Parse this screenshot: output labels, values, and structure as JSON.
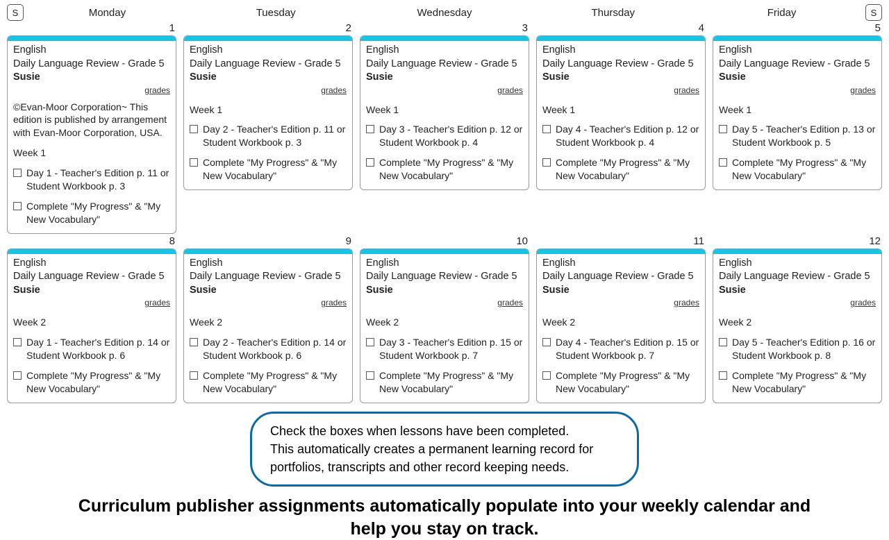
{
  "colors": {
    "card_bar": "#17c3e6",
    "card_border": "#9a9a9a",
    "bubble_border": "#0b6aa3",
    "text": "#222222",
    "background": "#ffffff"
  },
  "sideButtons": {
    "left": "S",
    "right": "S"
  },
  "dayHeaders": [
    "Monday",
    "Tuesday",
    "Wednesday",
    "Thursday",
    "Friday"
  ],
  "weeks": [
    {
      "days": [
        {
          "num": "1",
          "subject": "English",
          "course": "Daily Language Review - Grade 5",
          "student": "Susie",
          "gradesLabel": "grades",
          "note": "©Evan-Moor Corporation~ This edition is published by arrangement with Evan-Moor Corporation, USA.",
          "weekLabel": "Week 1",
          "tasks": [
            "Day 1 - Teacher's Edition p. 11 or Student Workbook p. 3",
            "Complete \"My Progress\" & \"My New Vocabulary\""
          ]
        },
        {
          "num": "2",
          "subject": "English",
          "course": "Daily Language Review - Grade 5",
          "student": "Susie",
          "gradesLabel": "grades",
          "weekLabel": "Week 1",
          "tasks": [
            "Day 2 - Teacher's Edition p. 11 or Student Workbook p. 3",
            "Complete \"My Progress\" & \"My New Vocabulary\""
          ]
        },
        {
          "num": "3",
          "subject": "English",
          "course": "Daily Language Review - Grade 5",
          "student": "Susie",
          "gradesLabel": "grades",
          "weekLabel": "Week 1",
          "tasks": [
            "Day 3 - Teacher's Edition p. 12 or Student Workbook p. 4",
            "Complete \"My Progress\" & \"My New Vocabulary\""
          ]
        },
        {
          "num": "4",
          "subject": "English",
          "course": "Daily Language Review - Grade 5",
          "student": "Susie",
          "gradesLabel": "grades",
          "weekLabel": "Week 1",
          "tasks": [
            "Day 4 - Teacher's Edition p. 12 or Student Workbook p. 4",
            "Complete \"My Progress\" & \"My New Vocabulary\""
          ]
        },
        {
          "num": "5",
          "subject": "English",
          "course": "Daily Language Review - Grade 5",
          "student": "Susie",
          "gradesLabel": "grades",
          "weekLabel": "Week 1",
          "tasks": [
            "Day 5 - Teacher's Edition p. 13 or Student Workbook p. 5",
            "Complete \"My Progress\" & \"My New Vocabulary\""
          ]
        }
      ]
    },
    {
      "days": [
        {
          "num": "8",
          "subject": "English",
          "course": "Daily Language Review - Grade 5",
          "student": "Susie",
          "gradesLabel": "grades",
          "weekLabel": "Week 2",
          "tasks": [
            "Day 1 - Teacher's Edition p. 14 or Student Workbook p. 6",
            "Complete \"My Progress\" & \"My New Vocabulary\""
          ]
        },
        {
          "num": "9",
          "subject": "English",
          "course": "Daily Language Review - Grade 5",
          "student": "Susie",
          "gradesLabel": "grades",
          "weekLabel": "Week 2",
          "tasks": [
            "Day 2 - Teacher's Edition p. 14 or Student Workbook p. 6",
            "Complete \"My Progress\" & \"My New Vocabulary\""
          ]
        },
        {
          "num": "10",
          "subject": "English",
          "course": "Daily Language Review - Grade 5",
          "student": "Susie",
          "gradesLabel": "grades",
          "weekLabel": "Week 2",
          "tasks": [
            "Day 3 - Teacher's Edition p. 15 or Student Workbook p. 7",
            "Complete \"My Progress\" & \"My New Vocabulary\""
          ]
        },
        {
          "num": "11",
          "subject": "English",
          "course": "Daily Language Review - Grade 5",
          "student": "Susie",
          "gradesLabel": "grades",
          "weekLabel": "Week 2",
          "tasks": [
            "Day 4 - Teacher's Edition p. 15 or Student Workbook p. 7",
            "Complete \"My Progress\" & \"My New Vocabulary\""
          ]
        },
        {
          "num": "12",
          "subject": "English",
          "course": "Daily Language Review - Grade 5",
          "student": "Susie",
          "gradesLabel": "grades",
          "weekLabel": "Week 2",
          "tasks": [
            "Day 5 - Teacher's Edition p. 16 or Student Workbook p. 8",
            "Complete \"My Progress\" & \"My New Vocabulary\""
          ]
        }
      ]
    }
  ],
  "bubble": {
    "line1": "Check the boxes when lessons have been completed.",
    "line2": "This automatically creates a permanent learning record for portfolios, transcripts and other record keeping needs."
  },
  "tagline": "Curriculum publisher assignments automatically populate into your weekly calendar and help you stay on track."
}
